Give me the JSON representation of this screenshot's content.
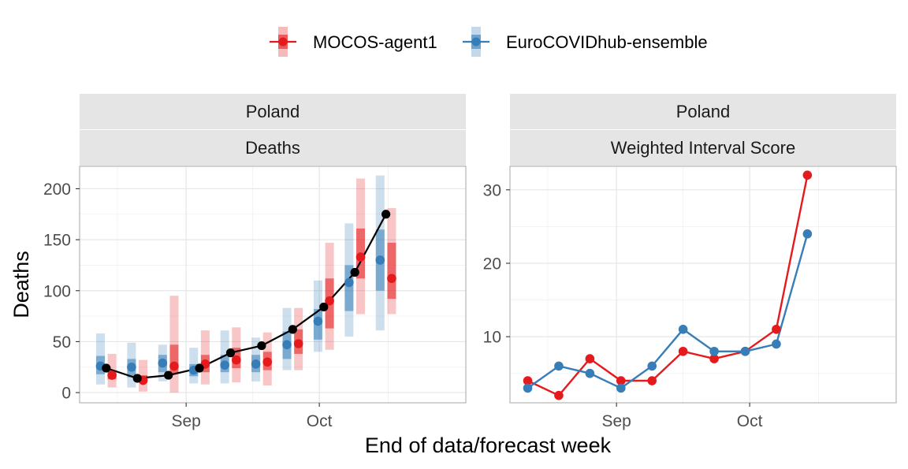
{
  "legend": [
    {
      "name": "MOCOS-agent1",
      "color": "#E41A1C"
    },
    {
      "name": "EuroCOVIDhub-ensemble",
      "color": "#377EB8"
    }
  ],
  "observed_color": "#000000",
  "xlabel": "End of data/forecast week",
  "chart_data": [
    {
      "type": "line",
      "facet": [
        "Poland",
        "Deaths"
      ],
      "ylabel": "Deaths",
      "ylim": [
        -10,
        222
      ],
      "yticks": [
        0,
        50,
        100,
        150,
        200
      ],
      "xlim": [
        "2021-08-08",
        "2021-11-03"
      ],
      "xticks": [
        {
          "label": "Sep",
          "date": "2021-09-01"
        },
        {
          "label": "Oct",
          "date": "2021-10-01"
        }
      ],
      "observed": {
        "x": [
          "2021-08-14",
          "2021-08-21",
          "2021-08-28",
          "2021-09-04",
          "2021-09-11",
          "2021-09-18",
          "2021-09-25",
          "2021-10-02",
          "2021-10-09",
          "2021-10-16"
        ],
        "y": [
          24,
          14,
          17,
          24,
          39,
          46,
          62,
          84,
          118,
          175
        ]
      },
      "forecasts": [
        {
          "model": "MOCOS-agent1",
          "x": [
            "2021-08-14",
            "2021-08-21",
            "2021-08-28",
            "2021-09-04",
            "2021-09-11",
            "2021-09-18",
            "2021-09-25",
            "2021-10-02",
            "2021-10-09",
            "2021-10-16"
          ],
          "median": [
            17,
            12,
            26,
            28,
            32,
            30,
            48,
            90,
            133,
            112
          ],
          "q25": [
            13,
            10,
            19,
            20,
            24,
            22,
            38,
            63,
            112,
            92
          ],
          "q75": [
            22,
            17,
            47,
            37,
            44,
            40,
            62,
            112,
            161,
            147
          ],
          "q05": [
            5,
            1,
            0,
            8,
            10,
            7,
            22,
            42,
            77,
            77
          ],
          "q95": [
            38,
            32,
            95,
            61,
            64,
            59,
            83,
            147,
            210,
            181
          ]
        },
        {
          "model": "EuroCOVIDhub-ensemble",
          "x": [
            "2021-08-14",
            "2021-08-21",
            "2021-08-28",
            "2021-09-04",
            "2021-09-11",
            "2021-09-18",
            "2021-09-25",
            "2021-10-02",
            "2021-10-09",
            "2021-10-16"
          ],
          "median": [
            26,
            25,
            29,
            22,
            27,
            28,
            47,
            70,
            108,
            130
          ],
          "q25": [
            18,
            15,
            20,
            16,
            20,
            20,
            33,
            52,
            80,
            100
          ],
          "q75": [
            36,
            33,
            37,
            28,
            37,
            37,
            60,
            82,
            125,
            160
          ],
          "q05": [
            8,
            5,
            11,
            9,
            9,
            11,
            22,
            40,
            55,
            61
          ],
          "q95": [
            58,
            49,
            47,
            44,
            61,
            54,
            83,
            110,
            166,
            213
          ]
        }
      ]
    },
    {
      "type": "line",
      "facet": [
        "Poland",
        "Weighted Interval Score"
      ],
      "ylim": [
        1.0,
        33.2
      ],
      "yticks": [
        10,
        20,
        30
      ],
      "xlim": [
        "2021-08-08",
        "2021-11-03"
      ],
      "xticks": [
        {
          "label": "Sep",
          "date": "2021-09-01"
        },
        {
          "label": "Oct",
          "date": "2021-10-01"
        }
      ],
      "series": [
        {
          "name": "MOCOS-agent1",
          "x": [
            "2021-08-12",
            "2021-08-19",
            "2021-08-26",
            "2021-09-02",
            "2021-09-09",
            "2021-09-16",
            "2021-09-23",
            "2021-09-30",
            "2021-10-07",
            "2021-10-14"
          ],
          "values": [
            4,
            2,
            7,
            4,
            4,
            8,
            7,
            8,
            11,
            32
          ]
        },
        {
          "name": "EuroCOVIDhub-ensemble",
          "x": [
            "2021-08-12",
            "2021-08-19",
            "2021-08-26",
            "2021-09-02",
            "2021-09-09",
            "2021-09-16",
            "2021-09-23",
            "2021-09-30",
            "2021-10-07",
            "2021-10-14"
          ],
          "values": [
            3,
            6,
            5,
            3,
            6,
            11,
            8,
            8,
            9,
            24
          ]
        }
      ]
    }
  ]
}
